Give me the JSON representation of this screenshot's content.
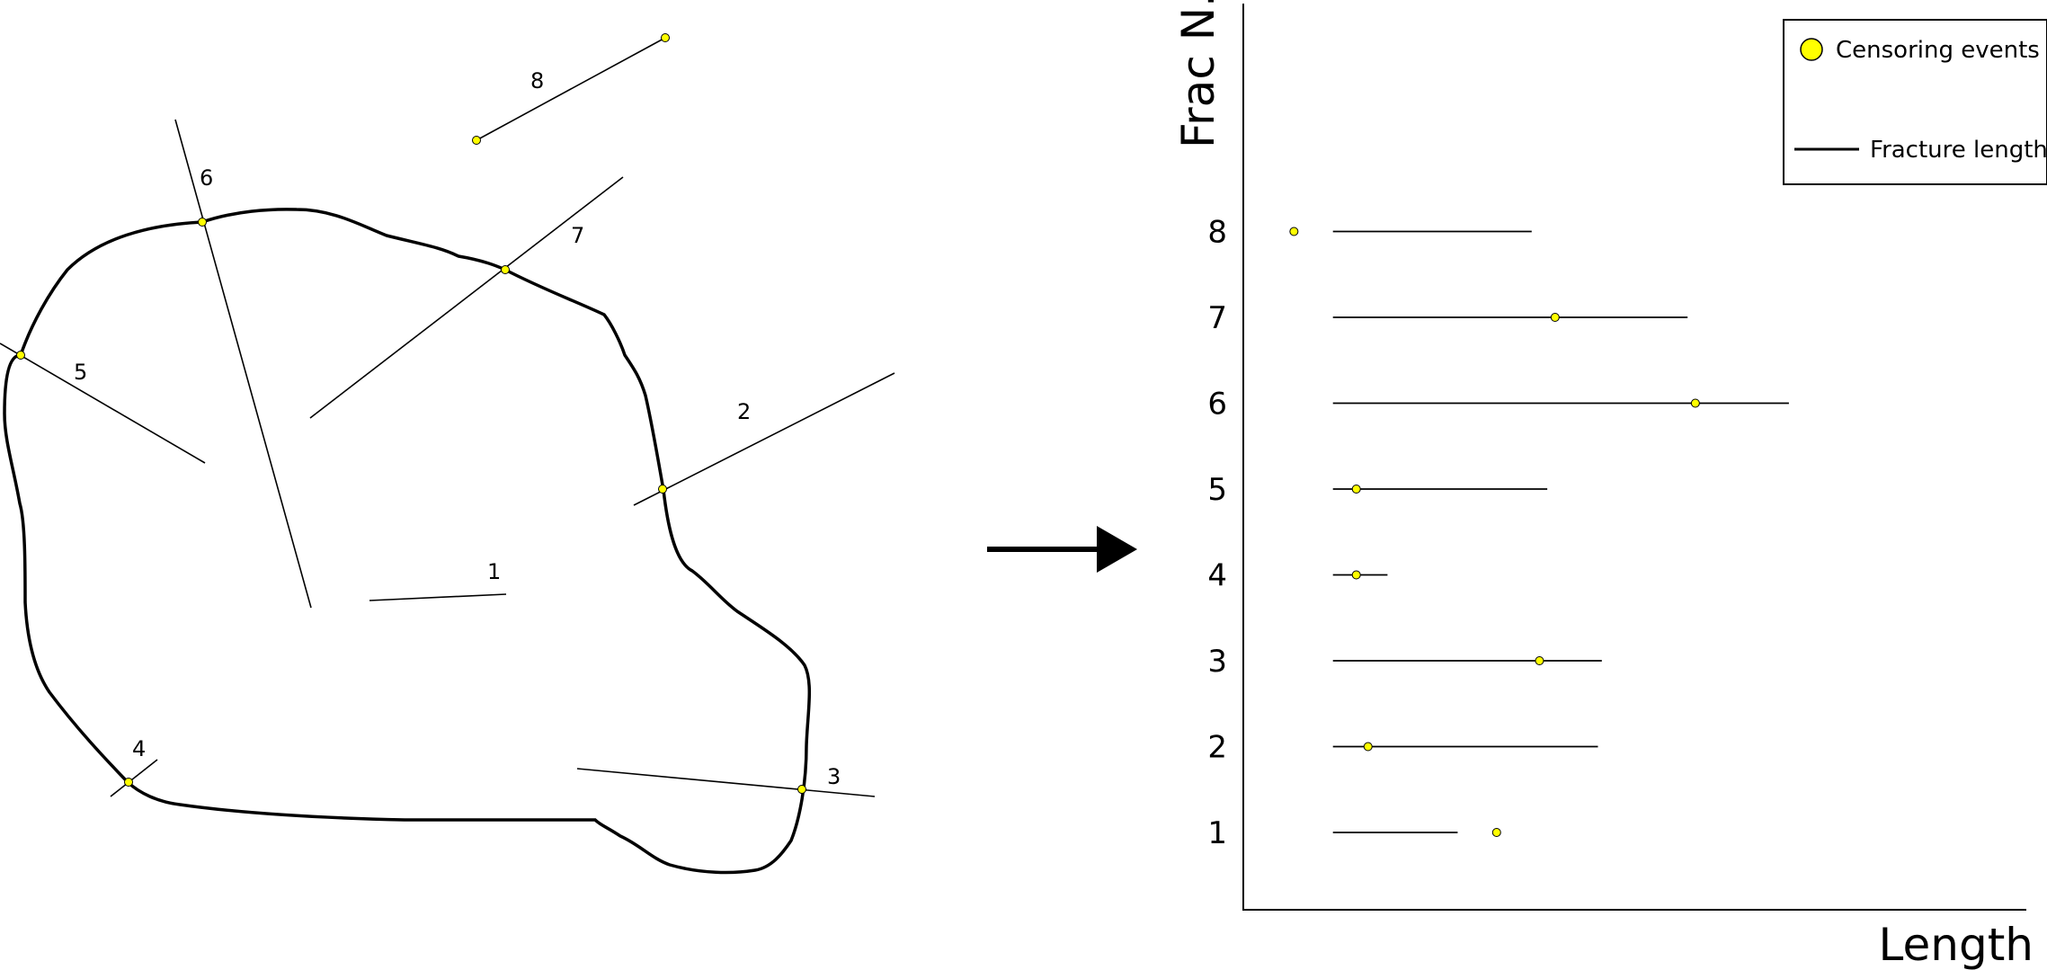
{
  "diagram": {
    "fracture_labels": [
      "1",
      "2",
      "3",
      "4",
      "5",
      "6",
      "7",
      "8"
    ]
  },
  "chart_data": {
    "type": "timeline",
    "ylabel": "Frac N.",
    "xlabel": "Length",
    "legend": {
      "placement": "top-right",
      "entries": [
        "Censoring events",
        "Fracture length"
      ]
    },
    "y_ticks": [
      "1",
      "2",
      "3",
      "4",
      "5",
      "6",
      "7",
      "8"
    ],
    "series": [
      {
        "name": "Fracture length",
        "rows": [
          {
            "frac": 8,
            "start": 0.115,
            "end": 0.37
          },
          {
            "frac": 7,
            "start": 0.115,
            "end": 0.57
          },
          {
            "frac": 6,
            "start": 0.115,
            "end": 0.7
          },
          {
            "frac": 5,
            "start": 0.115,
            "end": 0.39
          },
          {
            "frac": 4,
            "start": 0.115,
            "end": 0.185
          },
          {
            "frac": 3,
            "start": 0.115,
            "end": 0.46
          },
          {
            "frac": 2,
            "start": 0.115,
            "end": 0.455
          },
          {
            "frac": 1,
            "start": 0.115,
            "end": 0.275
          }
        ]
      },
      {
        "name": "Censoring events",
        "points": [
          {
            "frac": 8,
            "x": 0.065
          },
          {
            "frac": 7,
            "x": 0.4
          },
          {
            "frac": 6,
            "x": 0.58
          },
          {
            "frac": 5,
            "x": 0.145
          },
          {
            "frac": 4,
            "x": 0.145
          },
          {
            "frac": 3,
            "x": 0.38
          },
          {
            "frac": 2,
            "x": 0.16
          },
          {
            "frac": 1,
            "x": 0.325
          }
        ]
      }
    ],
    "colors": {
      "censor": "#ffff00",
      "line": "#000000"
    }
  }
}
